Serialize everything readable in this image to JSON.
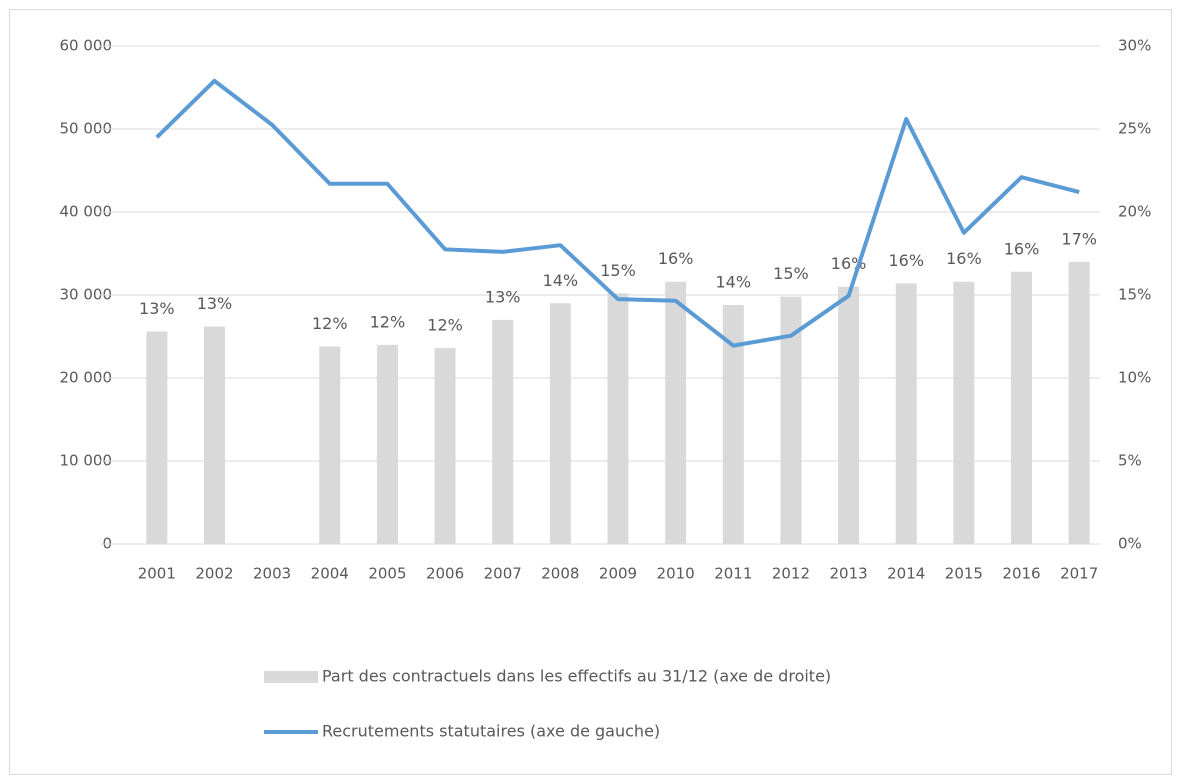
{
  "chart_data": {
    "type": "combo",
    "categories": [
      "2001",
      "2002",
      "2003",
      "2004",
      "2005",
      "2006",
      "2007",
      "2008",
      "2009",
      "2010",
      "2011",
      "2012",
      "2013",
      "2014",
      "2015",
      "2016",
      "2017"
    ],
    "series": [
      {
        "name": "Part des contractuels dans les effectifs au 31/12 (axe de droite)",
        "type": "bar",
        "axis": "y2",
        "color": "#d9d9d9",
        "values": [
          12.8,
          13.1,
          null,
          11.9,
          12.0,
          11.8,
          13.5,
          14.5,
          15.1,
          15.8,
          14.4,
          14.9,
          15.5,
          15.7,
          15.8,
          16.4,
          17.0
        ],
        "value_labels": [
          "13%",
          "13%",
          null,
          "12%",
          "12%",
          "12%",
          "13%",
          "14%",
          "15%",
          "16%",
          "14%",
          "15%",
          "16%",
          "16%",
          "16%",
          "16%",
          "17%"
        ]
      },
      {
        "name": "Recrutements statutaires (axe de gauche)",
        "type": "line",
        "axis": "y",
        "color": "#5b9bd5",
        "values": [
          49000,
          55800,
          50500,
          43400,
          43400,
          35500,
          35200,
          36000,
          29500,
          29300,
          23900,
          25100,
          29900,
          51200,
          37500,
          44200,
          42400
        ]
      }
    ],
    "ylim": [
      0,
      60000
    ],
    "yticks": [
      0,
      {
        "value": 10000,
        "label": "10 000"
      },
      {
        "value": 20000,
        "label": "20 000"
      },
      {
        "value": 30000,
        "label": "30 000"
      },
      {
        "value": 40000,
        "label": "40 000"
      },
      {
        "value": 50000,
        "label": "50 000"
      },
      {
        "value": 60000,
        "label": "60 000"
      }
    ],
    "y2lim": [
      0,
      30
    ],
    "y2ticks": [
      {
        "value": 0,
        "label": "0%"
      },
      {
        "value": 5,
        "label": "5%"
      },
      {
        "value": 10,
        "label": "10%"
      },
      {
        "value": 15,
        "label": "15%"
      },
      {
        "value": 20,
        "label": "20%"
      },
      {
        "value": 25,
        "label": "25%"
      },
      {
        "value": 30,
        "label": "30%"
      }
    ],
    "grid": true,
    "legend": "bottom"
  }
}
